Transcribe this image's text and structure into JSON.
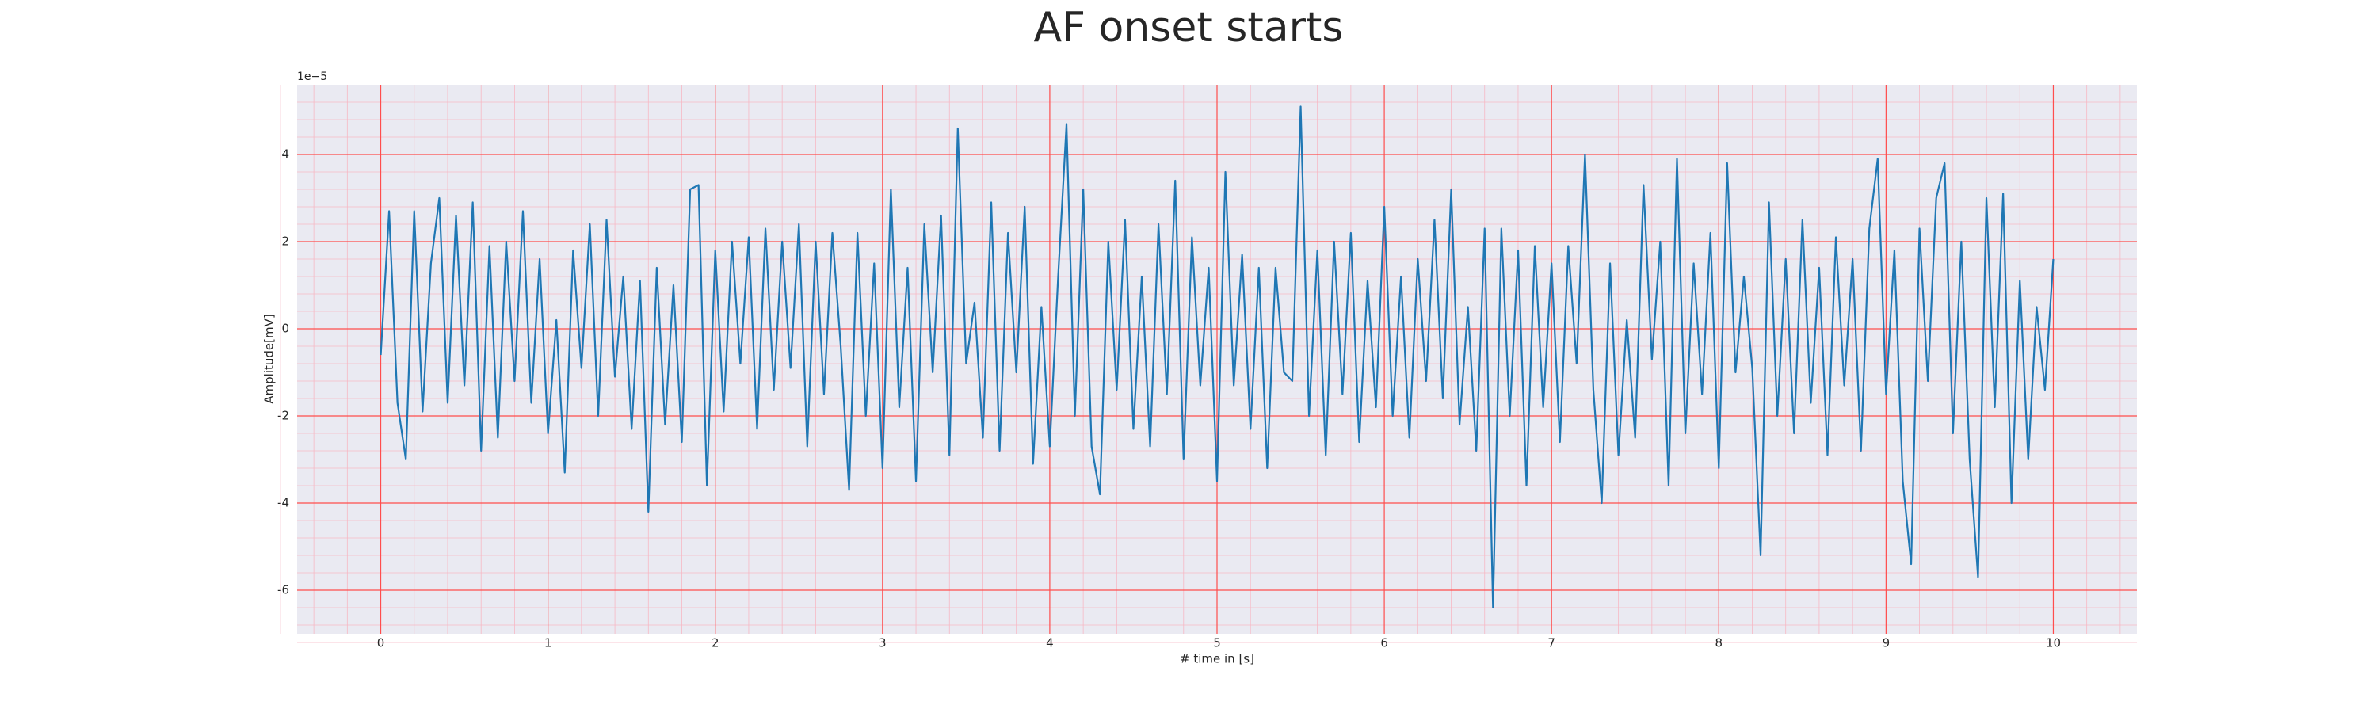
{
  "chart_data": {
    "type": "line",
    "title": "AF onset starts",
    "xlabel": "# time in [s]",
    "ylabel": "Amplitude[mV]",
    "y_offset_label": "1e−5",
    "xlim": [
      -0.5,
      10.5
    ],
    "ylim": [
      -7,
      5.6
    ],
    "xticks": [
      0,
      1,
      2,
      3,
      4,
      5,
      6,
      7,
      8,
      9,
      10
    ],
    "yticks": [
      -6,
      -4,
      -2,
      0,
      2,
      4
    ],
    "grid": true,
    "minor_grid": true,
    "grid_color": "#ff4d4d",
    "minor_grid_color": "#f7b8c4",
    "background": "#eaeaf2",
    "series": [
      {
        "color": "#1f77b4",
        "x": [
          0,
          0.05,
          0.1,
          0.15,
          0.2,
          0.25,
          0.3,
          0.35,
          0.4,
          0.45,
          0.5,
          0.55,
          0.6,
          0.65,
          0.7,
          0.75,
          0.8,
          0.85,
          0.9,
          0.95,
          1,
          1.05,
          1.1,
          1.15,
          1.2,
          1.25,
          1.3,
          1.35,
          1.4,
          1.45,
          1.5,
          1.55,
          1.6,
          1.65,
          1.7,
          1.75,
          1.8,
          1.85,
          1.9,
          1.95,
          2,
          2.05,
          2.1,
          2.15,
          2.2,
          2.25,
          2.3,
          2.35,
          2.4,
          2.45,
          2.5,
          2.55,
          2.6,
          2.65,
          2.7,
          2.75,
          2.8,
          2.85,
          2.9,
          2.95,
          3,
          3.05,
          3.1,
          3.15,
          3.2,
          3.25,
          3.3,
          3.35,
          3.4,
          3.45,
          3.5,
          3.55,
          3.6,
          3.65,
          3.7,
          3.75,
          3.8,
          3.85,
          3.9,
          3.95,
          4,
          4.05,
          4.1,
          4.15,
          4.2,
          4.25,
          4.3,
          4.35,
          4.4,
          4.45,
          4.5,
          4.55,
          4.6,
          4.65,
          4.7,
          4.75,
          4.8,
          4.85,
          4.9,
          4.95,
          5,
          5.05,
          5.1,
          5.15,
          5.2,
          5.25,
          5.3,
          5.35,
          5.4,
          5.45,
          5.5,
          5.55,
          5.6,
          5.65,
          5.7,
          5.75,
          5.8,
          5.85,
          5.9,
          5.95,
          6,
          6.05,
          6.1,
          6.15,
          6.2,
          6.25,
          6.3,
          6.35,
          6.4,
          6.45,
          6.5,
          6.55,
          6.6,
          6.65,
          6.7,
          6.75,
          6.8,
          6.85,
          6.9,
          6.95,
          7,
          7.05,
          7.1,
          7.15,
          7.2,
          7.25,
          7.3,
          7.35,
          7.4,
          7.45,
          7.5,
          7.55,
          7.6,
          7.65,
          7.7,
          7.75,
          7.8,
          7.85,
          7.9,
          7.95,
          8,
          8.05,
          8.1,
          8.15,
          8.2,
          8.25,
          8.3,
          8.35,
          8.4,
          8.45,
          8.5,
          8.55,
          8.6,
          8.65,
          8.7,
          8.75,
          8.8,
          8.85,
          8.9,
          8.95,
          9,
          9.05,
          9.1,
          9.15,
          9.2,
          9.25,
          9.3,
          9.35,
          9.4,
          9.45,
          9.5,
          9.55,
          9.6,
          9.65,
          9.7,
          9.75,
          9.8,
          9.85,
          9.9,
          9.95,
          10
        ],
        "values": [
          -0.6,
          2.7,
          -1.7,
          -3.0,
          2.7,
          -1.9,
          1.5,
          3.0,
          -1.7,
          2.6,
          -1.3,
          2.9,
          -2.8,
          1.9,
          -2.5,
          2.0,
          -1.2,
          2.7,
          -1.7,
          1.6,
          -2.4,
          0.2,
          -3.3,
          1.8,
          -0.9,
          2.4,
          -2.0,
          2.5,
          -1.1,
          1.2,
          -2.3,
          1.1,
          -4.2,
          1.4,
          -2.2,
          1.0,
          -2.6,
          3.2,
          3.3,
          -3.6,
          1.8,
          -1.9,
          2.0,
          -0.8,
          2.1,
          -2.3,
          2.3,
          -1.4,
          2.0,
          -0.9,
          2.4,
          -2.7,
          2.0,
          -1.5,
          2.2,
          -0.4,
          -3.7,
          2.2,
          -2.0,
          1.5,
          -3.2,
          3.2,
          -1.8,
          1.4,
          -3.5,
          2.4,
          -1.0,
          2.6,
          -2.9,
          4.6,
          -0.8,
          0.6,
          -2.5,
          2.9,
          -2.8,
          2.2,
          -1.0,
          2.8,
          -3.1,
          0.5,
          -2.7,
          1.2,
          4.7,
          -2.0,
          3.2,
          -2.7,
          -3.8,
          2.0,
          -1.4,
          2.5,
          -2.3,
          1.2,
          -2.7,
          2.4,
          -1.5,
          3.4,
          -3.0,
          2.1,
          -1.3,
          1.4,
          -3.5,
          3.6,
          -1.3,
          1.7,
          -2.3,
          1.4,
          -3.2,
          1.4,
          -1.0,
          -1.2,
          5.1,
          -2.0,
          1.8,
          -2.9,
          2.0,
          -1.5,
          2.2,
          -2.6,
          1.1,
          -1.8,
          2.8,
          -2.0,
          1.2,
          -2.5,
          1.6,
          -1.2,
          2.5,
          -1.6,
          3.2,
          -2.2,
          0.5,
          -2.8,
          2.3,
          -6.4,
          2.3,
          -2.0,
          1.8,
          -3.6,
          1.9,
          -1.8,
          1.5,
          -2.6,
          1.9,
          -0.8,
          4.0,
          -1.4,
          -4.0,
          1.5,
          -2.9,
          0.2,
          -2.5,
          3.3,
          -0.7,
          2.0,
          -3.6,
          3.9,
          -2.4,
          1.5,
          -1.5,
          2.2,
          -3.2,
          3.8,
          -1.0,
          1.2,
          -0.9,
          -5.2,
          2.9,
          -2.0,
          1.6,
          -2.4,
          2.5,
          -1.7,
          1.4,
          -2.9,
          2.1,
          -1.3,
          1.6,
          -2.8,
          2.3,
          3.9,
          -1.5,
          1.8,
          -3.5,
          -5.4,
          2.3,
          -1.2,
          3.0,
          3.8,
          -2.4,
          2.0,
          -3.0,
          -5.7,
          3.0,
          -1.8,
          3.1,
          -4.0,
          1.1,
          -3.0,
          0.5,
          -1.4,
          1.6
        ]
      }
    ]
  }
}
